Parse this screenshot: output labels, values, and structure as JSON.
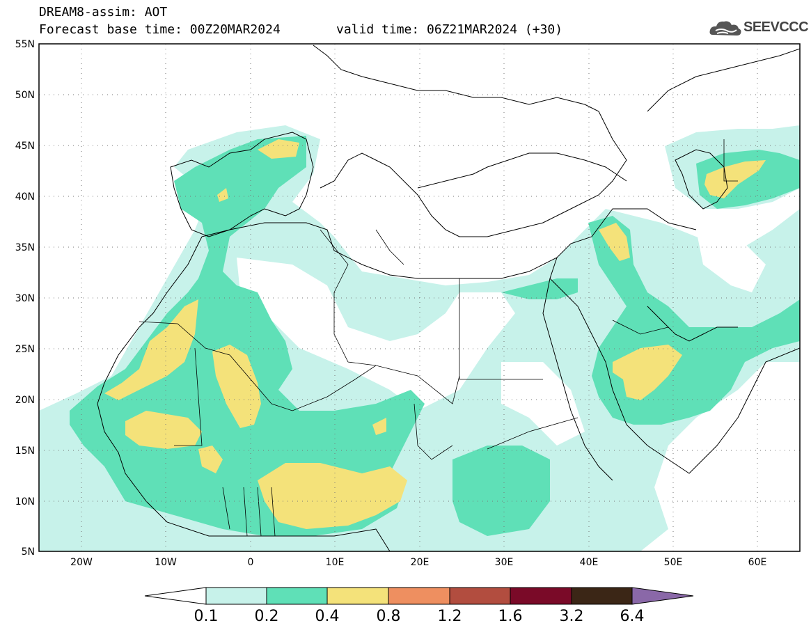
{
  "header": {
    "title": "DREAM8-assim: AOT",
    "base_time": "Forecast base time: 00Z20MAR2024",
    "valid_time": "valid time: 06Z21MAR2024 (+30)",
    "logo_text": "SEEVCCC"
  },
  "map": {
    "lon_range": [
      -25,
      65
    ],
    "lat_range": [
      5,
      55
    ],
    "lon_ticks": [
      "20W",
      "10W",
      "0",
      "10E",
      "20E",
      "30E",
      "40E",
      "50E",
      "60E"
    ],
    "lat_ticks": [
      "55N",
      "50N",
      "45N",
      "40N",
      "35N",
      "30N",
      "25N",
      "20N",
      "15N",
      "10N",
      "5N"
    ],
    "gridlines": "dotted"
  },
  "colorbar": {
    "labels": [
      "0.1",
      "0.2",
      "0.4",
      "0.8",
      "1.2",
      "1.6",
      "3.2",
      "6.4"
    ],
    "colors": [
      "#ffffff",
      "#c7f2ea",
      "#5fe0b7",
      "#f4e27a",
      "#ee8f60",
      "#b24d3f",
      "#7a0a28",
      "#3b2616",
      "#8a68a8"
    ]
  }
}
